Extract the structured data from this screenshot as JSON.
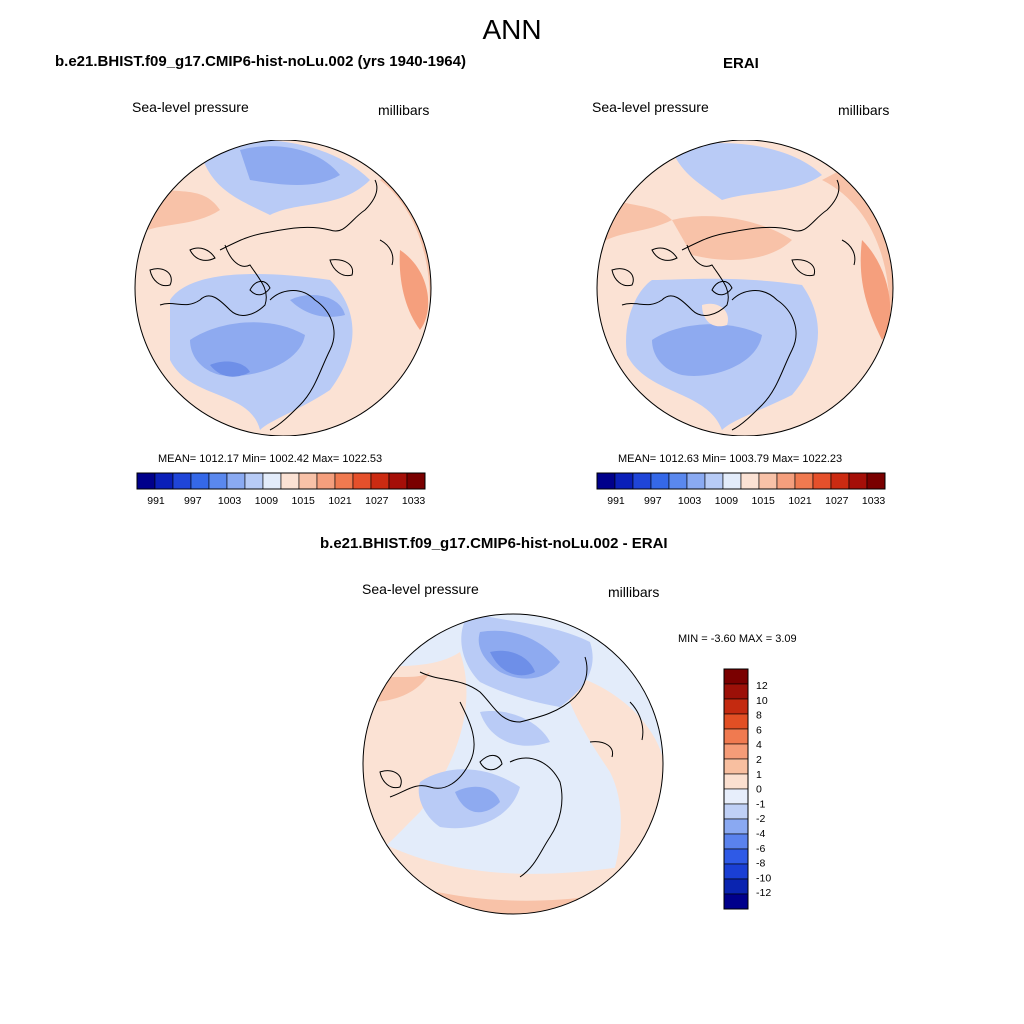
{
  "page": {
    "title": "ANN"
  },
  "panels": {
    "model": {
      "title": "b.e21.BHIST.f09_g17.CMIP6-hist-noLu.002 (yrs 1940-1964)",
      "variable": "Sea-level pressure",
      "units": "millibars",
      "stats": "MEAN= 1012.17  Min= 1002.42  Max= 1022.53"
    },
    "obs": {
      "title": "ERAI",
      "variable": "Sea-level pressure",
      "units": "millibars",
      "stats": "MEAN= 1012.63  Min= 1003.79  Max= 1022.23"
    },
    "diff": {
      "title": "b.e21.BHIST.f09_g17.CMIP6-hist-noLu.002 - ERAI",
      "variable": "Sea-level pressure",
      "units": "millibars",
      "stats": "MIN =  -3.60 MAX =   3.09"
    }
  },
  "colorbars": {
    "abs": {
      "colors": [
        "#00008b",
        "#0a1fb8",
        "#1f45d8",
        "#3568e8",
        "#5a88ee",
        "#8aaaf2",
        "#b7cbf6",
        "#e3ecfa",
        "#fbe2d4",
        "#f8c2a8",
        "#f59f7d",
        "#f07a50",
        "#e5502b",
        "#cc2b12",
        "#a50f08",
        "#7a0000"
      ],
      "tick_labels": [
        "991",
        "997",
        "1003",
        "1009",
        "1015",
        "1021",
        "1027",
        "1033"
      ]
    },
    "diff": {
      "colors": [
        "#00008b",
        "#0a24b0",
        "#1a3fd4",
        "#2f5ae6",
        "#5a82ee",
        "#8aa9f2",
        "#bfd0f6",
        "#e7eefb",
        "#fbe0d0",
        "#f8bfa0",
        "#f59c78",
        "#f07a50",
        "#e24f24",
        "#c42a10",
        "#9c1008",
        "#7a0000"
      ],
      "tick_labels": [
        "12",
        "10",
        "8",
        "6",
        "4",
        "2",
        "1",
        "0",
        "-1",
        "-2",
        "-4",
        "-6",
        "-8",
        "-10",
        "-12"
      ]
    }
  },
  "field_colors": {
    "low_deep": "#6e8fe8",
    "low_mid": "#8eaaf0",
    "low_light": "#b9cbf6",
    "neutral": "#e3ecfa",
    "high_light": "#fbe2d4",
    "high_mid": "#f8c2a8",
    "high_deep": "#f59f7d",
    "coast": "#000000"
  }
}
